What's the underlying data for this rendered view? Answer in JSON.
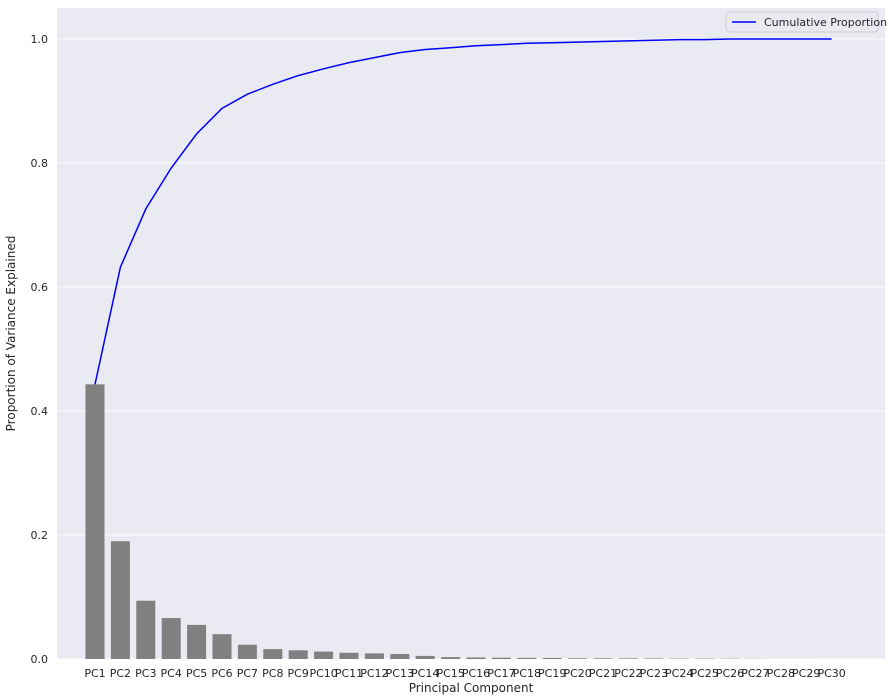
{
  "chart_data": {
    "type": "bar",
    "xlabel": "Principal Component",
    "ylabel": "Proportion of Variance Explained",
    "ylim": [
      0,
      1.05
    ],
    "yticks": [
      "0.0",
      "0.2",
      "0.4",
      "0.6",
      "0.8",
      "1.0"
    ],
    "grid": true,
    "legend_position": "top-right",
    "categories": [
      "PC1",
      "PC2",
      "PC3",
      "PC4",
      "PC5",
      "PC6",
      "PC7",
      "PC8",
      "PC9",
      "PC10",
      "PC11",
      "PC12",
      "PC13",
      "PC14",
      "PC15",
      "PC16",
      "PC17",
      "PC18",
      "PC19",
      "PC20",
      "PC21",
      "PC22",
      "PC23",
      "PC24",
      "PC25",
      "PC26",
      "PC27",
      "PC28",
      "PC29",
      "PC30"
    ],
    "bar_color": "#808080",
    "bar_values": [
      0.443,
      0.19,
      0.094,
      0.066,
      0.055,
      0.04,
      0.023,
      0.016,
      0.014,
      0.012,
      0.01,
      0.009,
      0.008,
      0.005,
      0.003,
      0.0025,
      0.002,
      0.0018,
      0.0016,
      0.001,
      0.001,
      0.0009,
      0.0008,
      0.0006,
      0.0005,
      0.0004,
      0.0002,
      0.0001,
      5e-05,
      1e-05
    ],
    "line_series": {
      "name": "Cumulative Proportion",
      "color": "#0000ff",
      "values": [
        0.443,
        0.632,
        0.726,
        0.792,
        0.847,
        0.888,
        0.911,
        0.927,
        0.941,
        0.952,
        0.962,
        0.97,
        0.978,
        0.983,
        0.986,
        0.989,
        0.991,
        0.993,
        0.994,
        0.995,
        0.996,
        0.997,
        0.998,
        0.999,
        0.999,
        1.0,
        1.0,
        1.0,
        1.0,
        1.0
      ]
    }
  }
}
